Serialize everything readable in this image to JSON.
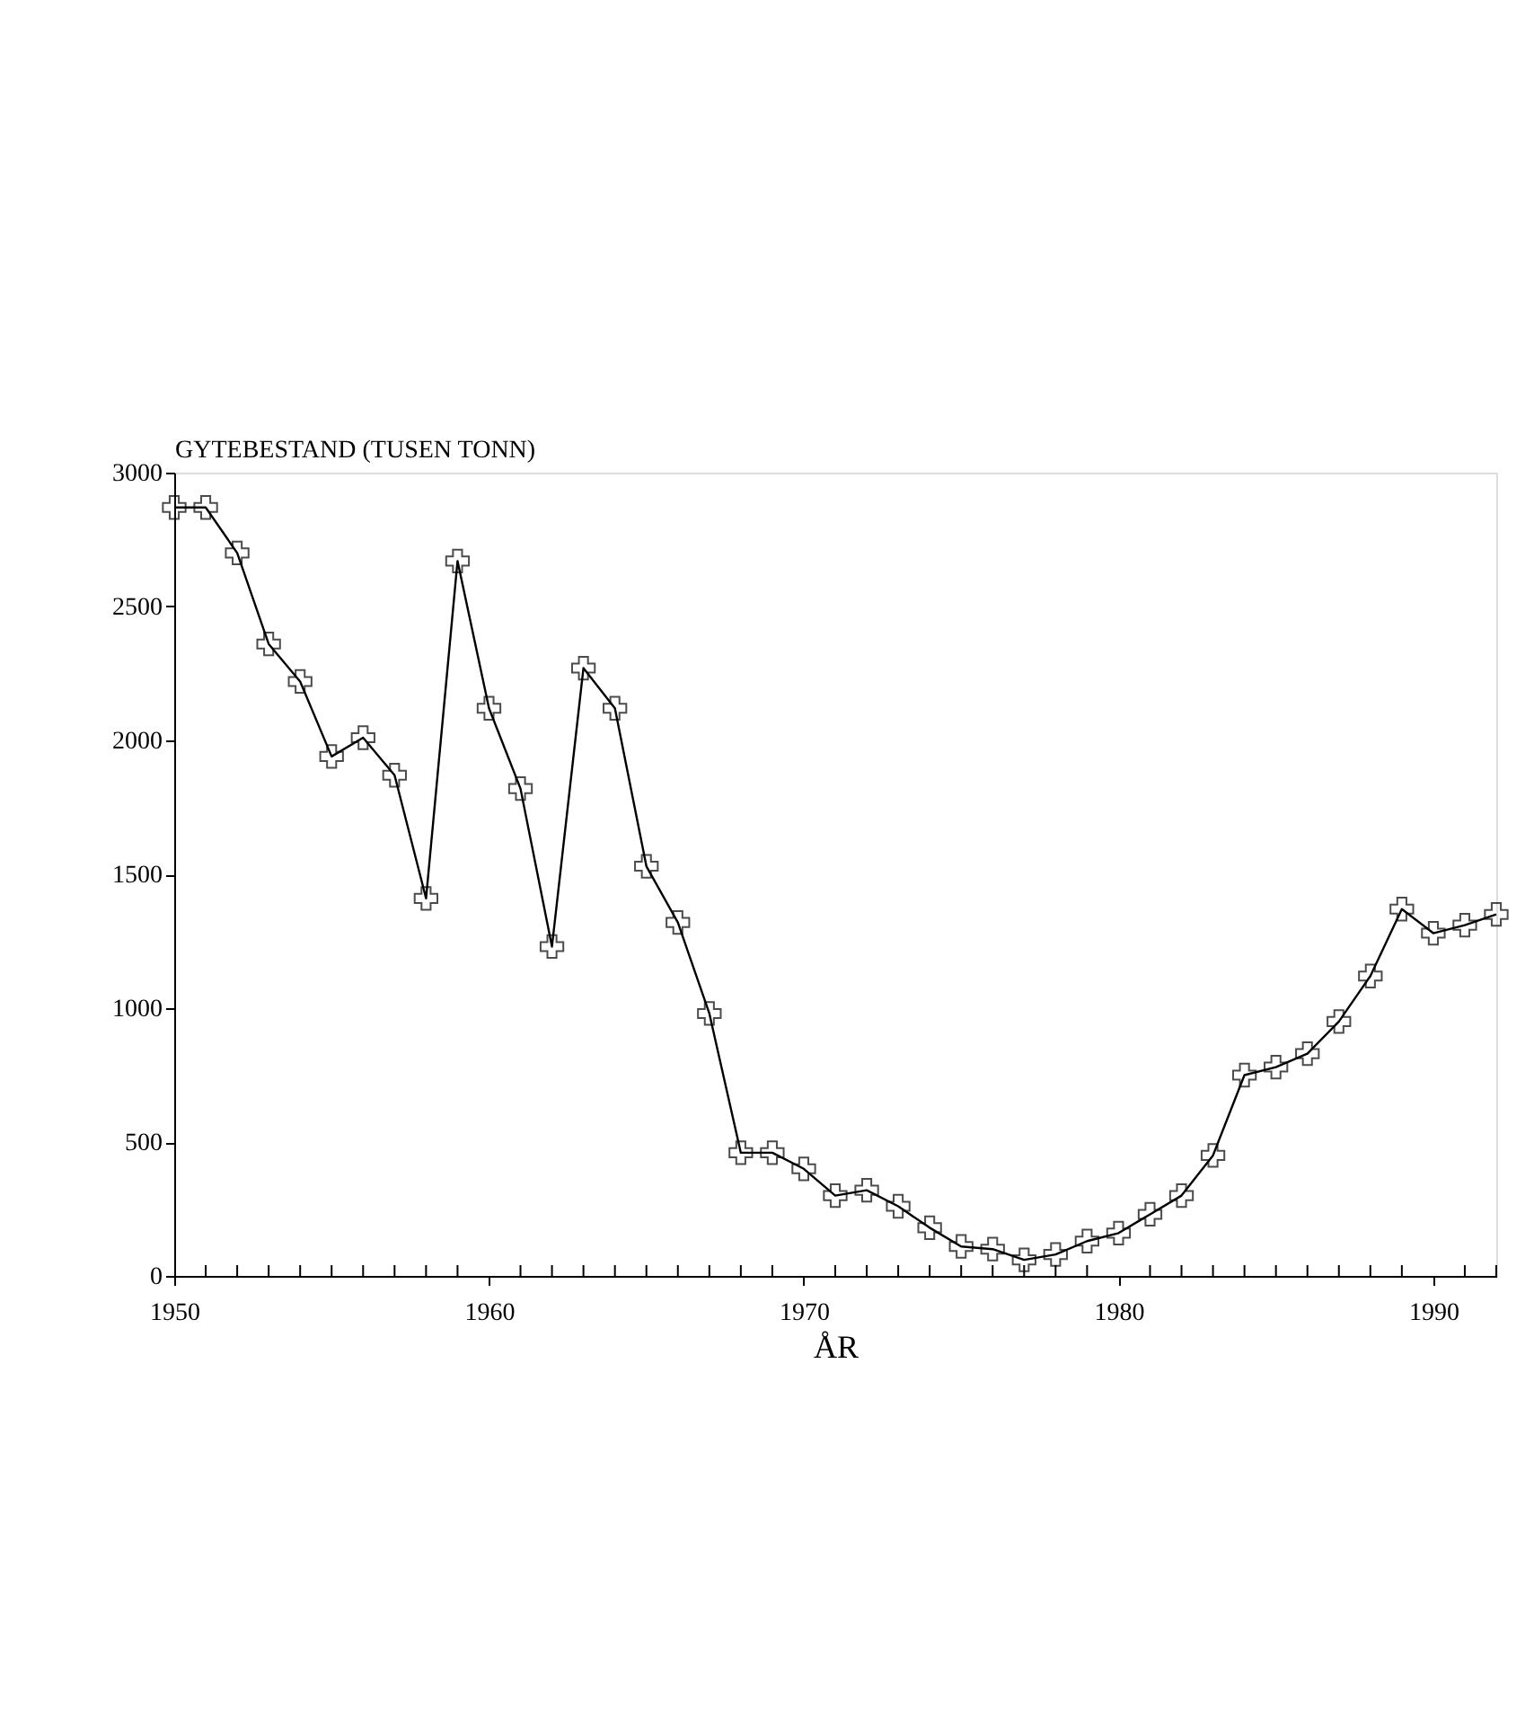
{
  "chart_data": {
    "type": "line",
    "ylabel": "GYTEBESTAND (TUSEN TONN)",
    "xlabel": "ÅR",
    "x": [
      1950,
      1951,
      1952,
      1953,
      1954,
      1955,
      1956,
      1957,
      1958,
      1959,
      1960,
      1961,
      1962,
      1963,
      1964,
      1965,
      1966,
      1967,
      1968,
      1969,
      1970,
      1971,
      1972,
      1973,
      1974,
      1975,
      1976,
      1977,
      1978,
      1979,
      1980,
      1981,
      1982,
      1983,
      1984,
      1985,
      1986,
      1987,
      1988,
      1989,
      1990,
      1991,
      1992
    ],
    "series": [
      {
        "color": "#000000",
        "values": [
          2870,
          2870,
          2700,
          2360,
          2220,
          1940,
          2010,
          1870,
          1410,
          2670,
          2120,
          1820,
          1230,
          2270,
          2120,
          1530,
          1320,
          980,
          460,
          460,
          400,
          300,
          320,
          260,
          180,
          110,
          100,
          60,
          80,
          130,
          160,
          230,
          300,
          450,
          750,
          780,
          830,
          950,
          1120,
          1370,
          1280,
          1310,
          1350
        ]
      }
    ],
    "xlim": [
      1950,
      1992
    ],
    "xticks": [
      1950,
      {
        "value": 1951,
        "label": null
      },
      {
        "value": 1952,
        "label": null
      },
      {
        "value": 1953,
        "label": null
      },
      {
        "value": 1954,
        "label": null
      },
      {
        "value": 1955,
        "label": null
      },
      {
        "value": 1956,
        "label": null
      },
      {
        "value": 1957,
        "label": null
      },
      {
        "value": 1958,
        "label": null
      },
      {
        "value": 1959,
        "label": null
      },
      1960,
      {
        "value": 1961,
        "label": null
      },
      {
        "value": 1962,
        "label": null
      },
      {
        "value": 1963,
        "label": null
      },
      {
        "value": 1964,
        "label": null
      },
      {
        "value": 1965,
        "label": null
      },
      {
        "value": 1966,
        "label": null
      },
      {
        "value": 1967,
        "label": null
      },
      {
        "value": 1968,
        "label": null
      },
      {
        "value": 1969,
        "label": null
      },
      1970,
      {
        "value": 1971,
        "label": null
      },
      {
        "value": 1972,
        "label": null
      },
      {
        "value": 1973,
        "label": null
      },
      {
        "value": 1974,
        "label": null
      },
      {
        "value": 1975,
        "label": null
      },
      {
        "value": 1976,
        "label": null
      },
      {
        "value": 1977,
        "label": null
      },
      {
        "value": 1978,
        "label": null
      },
      {
        "value": 1979,
        "label": null
      },
      1980,
      {
        "value": 1981,
        "label": null
      },
      {
        "value": 1982,
        "label": null
      },
      {
        "value": 1983,
        "label": null
      },
      {
        "value": 1984,
        "label": null
      },
      {
        "value": 1985,
        "label": null
      },
      {
        "value": 1986,
        "label": null
      },
      {
        "value": 1987,
        "label": null
      },
      {
        "value": 1988,
        "label": null
      },
      {
        "value": 1989,
        "label": null
      },
      1990,
      {
        "value": 1991,
        "label": null
      },
      {
        "value": 1992,
        "label": null
      }
    ],
    "ylim": [
      0,
      3000
    ],
    "yticks": [
      0,
      500,
      1000,
      1500,
      2000,
      2500,
      3000
    ],
    "grid": false,
    "marker": "cross",
    "line_style": "solid"
  }
}
